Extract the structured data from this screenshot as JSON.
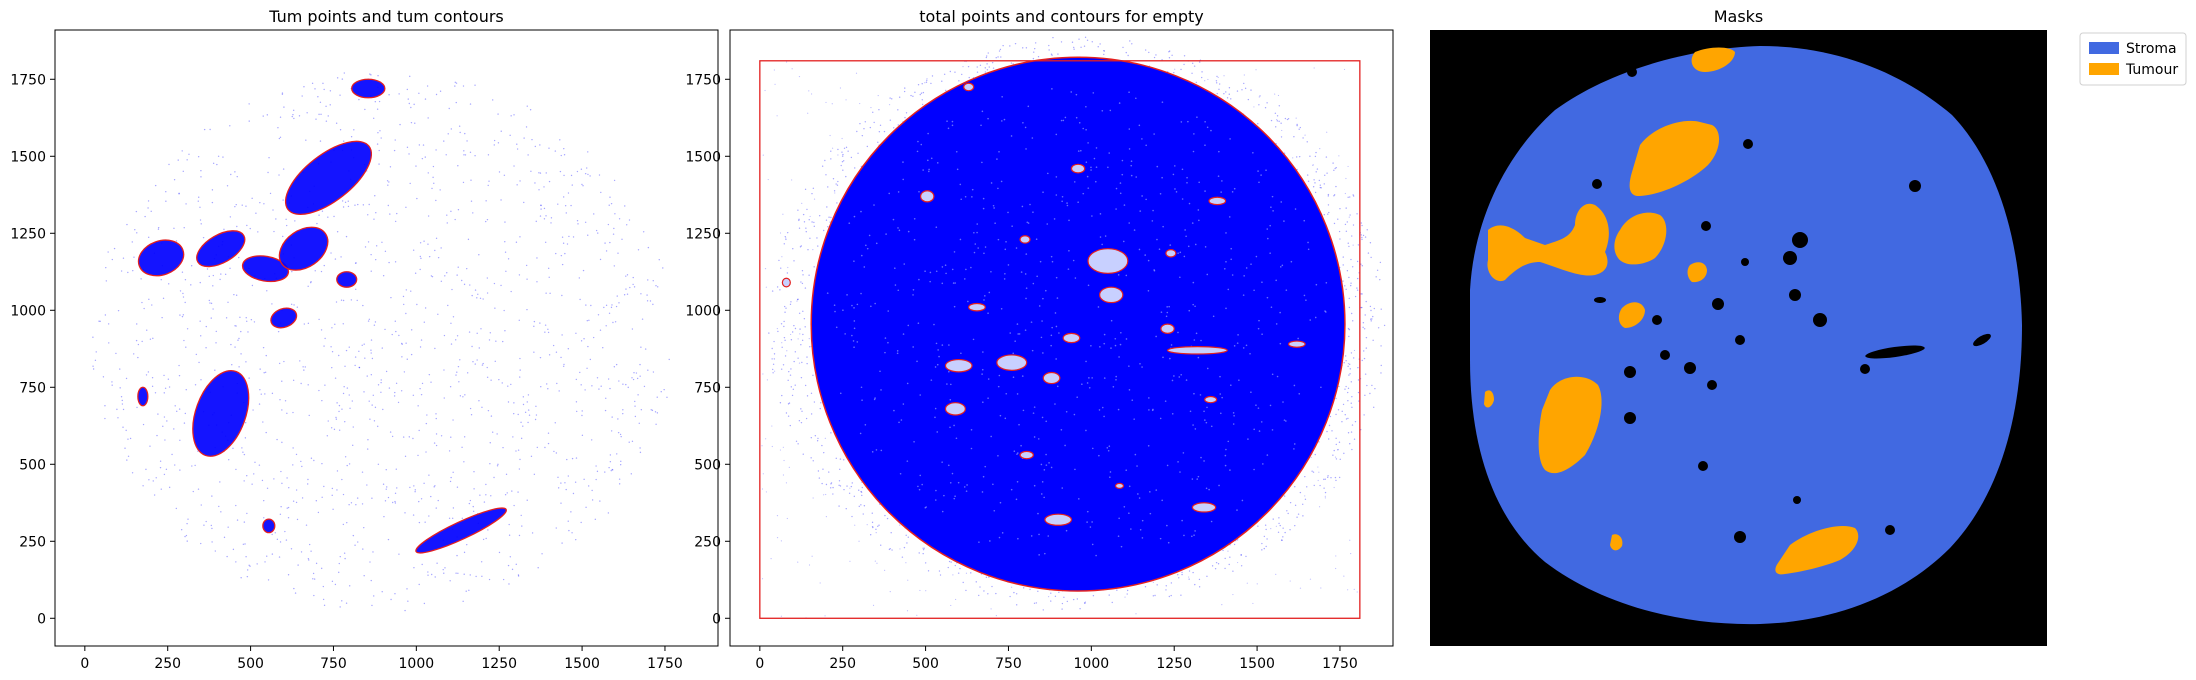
{
  "figure": {
    "background": "#ffffff"
  },
  "chart_data": [
    {
      "type": "scatter",
      "title": "Tum points and tum contours",
      "xlabel": "",
      "ylabel": "",
      "xlim": [
        -90,
        1910
      ],
      "ylim": [
        -90,
        1910
      ],
      "xticks": [
        0,
        250,
        500,
        750,
        1000,
        1250,
        1500,
        1750
      ],
      "yticks": [
        0,
        250,
        500,
        750,
        1000,
        1250,
        1500,
        1750
      ],
      "grid": false,
      "points_color": "#0000ff",
      "contour_color": "#e32020",
      "scatter_extent": {
        "cx": 900,
        "cy": 900,
        "r": 880
      },
      "tumour_regions": [
        {
          "cx": 855,
          "cy": 1720,
          "rx": 50,
          "ry": 30,
          "angle": 0
        },
        {
          "cx": 735,
          "cy": 1430,
          "rx": 155,
          "ry": 75,
          "angle": 38
        },
        {
          "cx": 230,
          "cy": 1170,
          "rx": 70,
          "ry": 55,
          "angle": 20
        },
        {
          "cx": 410,
          "cy": 1200,
          "rx": 80,
          "ry": 45,
          "angle": 30
        },
        {
          "cx": 545,
          "cy": 1135,
          "rx": 70,
          "ry": 40,
          "angle": -10
        },
        {
          "cx": 660,
          "cy": 1200,
          "rx": 80,
          "ry": 60,
          "angle": 35
        },
        {
          "cx": 790,
          "cy": 1100,
          "rx": 30,
          "ry": 25,
          "angle": 0
        },
        {
          "cx": 600,
          "cy": 975,
          "rx": 40,
          "ry": 30,
          "angle": 20
        },
        {
          "cx": 410,
          "cy": 665,
          "rx": 75,
          "ry": 145,
          "angle": -20
        },
        {
          "cx": 175,
          "cy": 720,
          "rx": 15,
          "ry": 30,
          "angle": 0
        },
        {
          "cx": 555,
          "cy": 300,
          "rx": 18,
          "ry": 22,
          "angle": 0
        },
        {
          "cx": 1135,
          "cy": 285,
          "rx": 150,
          "ry": 28,
          "angle": 25
        }
      ]
    },
    {
      "type": "scatter",
      "title": "total points and contours for empty",
      "xlabel": "",
      "ylabel": "",
      "xlim": [
        -90,
        1910
      ],
      "ylim": [
        -90,
        1910
      ],
      "xticks": [
        0,
        250,
        500,
        750,
        1000,
        1250,
        1500,
        1750
      ],
      "yticks": [
        0,
        250,
        500,
        750,
        1000,
        1250,
        1500,
        1750
      ],
      "grid": false,
      "points_color": "#0000ff",
      "contour_color": "#e32020",
      "bounding_box": {
        "x0": 0,
        "y0": 0,
        "x1": 1810,
        "y1": 1810
      },
      "tissue_circle": {
        "cx": 960,
        "cy": 955,
        "r": 805
      },
      "empty_regions": [
        {
          "cx": 1050,
          "cy": 1160,
          "rx": 60,
          "ry": 40
        },
        {
          "cx": 1320,
          "cy": 870,
          "rx": 90,
          "ry": 12
        },
        {
          "cx": 760,
          "cy": 830,
          "rx": 45,
          "ry": 25
        },
        {
          "cx": 600,
          "cy": 820,
          "rx": 40,
          "ry": 20
        },
        {
          "cx": 590,
          "cy": 680,
          "rx": 30,
          "ry": 20
        },
        {
          "cx": 900,
          "cy": 320,
          "rx": 40,
          "ry": 18
        },
        {
          "cx": 1060,
          "cy": 1050,
          "rx": 35,
          "ry": 25
        },
        {
          "cx": 960,
          "cy": 1460,
          "rx": 20,
          "ry": 14
        },
        {
          "cx": 1380,
          "cy": 1355,
          "rx": 25,
          "ry": 12
        },
        {
          "cx": 1620,
          "cy": 890,
          "rx": 25,
          "ry": 10
        },
        {
          "cx": 80,
          "cy": 1090,
          "rx": 12,
          "ry": 14
        },
        {
          "cx": 805,
          "cy": 530,
          "rx": 20,
          "ry": 12
        },
        {
          "cx": 1360,
          "cy": 710,
          "rx": 18,
          "ry": 10
        },
        {
          "cx": 655,
          "cy": 1010,
          "rx": 25,
          "ry": 12
        },
        {
          "cx": 1340,
          "cy": 360,
          "rx": 35,
          "ry": 15
        },
        {
          "cx": 505,
          "cy": 1370,
          "rx": 20,
          "ry": 18
        },
        {
          "cx": 1230,
          "cy": 940,
          "rx": 20,
          "ry": 15
        },
        {
          "cx": 800,
          "cy": 1230,
          "rx": 15,
          "ry": 12
        },
        {
          "cx": 1240,
          "cy": 1185,
          "rx": 15,
          "ry": 12
        },
        {
          "cx": 630,
          "cy": 1725,
          "rx": 15,
          "ry": 12
        },
        {
          "cx": 940,
          "cy": 910,
          "rx": 25,
          "ry": 15
        },
        {
          "cx": 880,
          "cy": 780,
          "rx": 25,
          "ry": 18
        },
        {
          "cx": 1085,
          "cy": 430,
          "rx": 12,
          "ry": 8
        }
      ]
    },
    {
      "type": "image",
      "title": "Masks",
      "legend": {
        "position": "top-right, outside",
        "entries": [
          {
            "label": "Stroma",
            "color": "#4169e1"
          },
          {
            "label": "Tumour",
            "color": "#ffa500"
          }
        ]
      },
      "background_color": "#000000",
      "stroma_color": "#4169e1",
      "tumour_color": "#ffa500",
      "void_color": "#000000"
    }
  ]
}
